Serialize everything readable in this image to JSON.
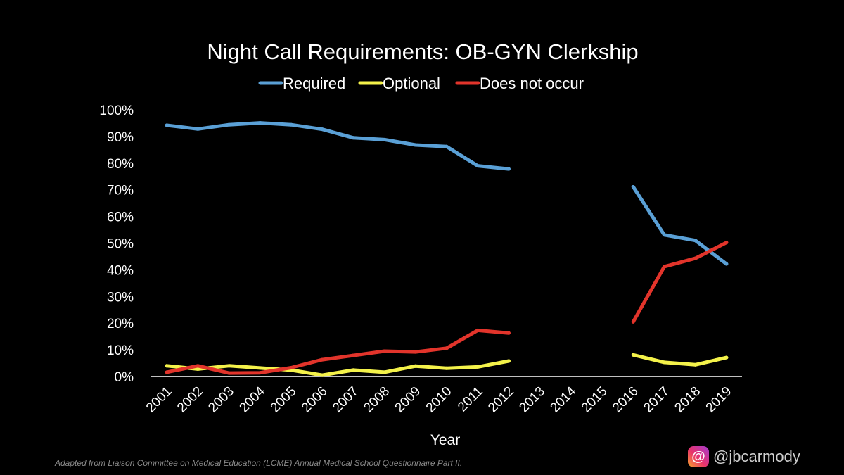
{
  "chart_data": {
    "type": "line",
    "title": "Night Call Requirements: OB-GYN Clerkship",
    "xlabel": "Year",
    "ylabel": "",
    "categories": [
      "2001",
      "2002",
      "2003",
      "2004",
      "2005",
      "2006",
      "2007",
      "2008",
      "2009",
      "2010",
      "2011",
      "2012",
      "2013",
      "2014",
      "2015",
      "2016",
      "2017",
      "2018",
      "2019"
    ],
    "ylim": [
      0,
      100
    ],
    "yticks": [
      "0%",
      "10%",
      "20%",
      "30%",
      "40%",
      "50%",
      "60%",
      "70%",
      "80%",
      "90%",
      "100%"
    ],
    "grid": false,
    "legend_position": "top",
    "series": [
      {
        "name": "Required",
        "color": "#5aa0d6",
        "values": [
          94.2,
          92.8,
          94.4,
          95.1,
          94.4,
          92.7,
          89.5,
          88.8,
          86.8,
          86.2,
          79.0,
          77.8,
          null,
          null,
          null,
          71.1,
          53.1,
          51.0,
          42.2
        ]
      },
      {
        "name": "Optional",
        "color": "#f4f24a",
        "values": [
          4.0,
          2.8,
          4.0,
          3.2,
          2.4,
          0.5,
          2.4,
          1.6,
          3.9,
          3.1,
          3.6,
          5.8,
          null,
          null,
          null,
          8.1,
          5.3,
          4.4,
          7.1
        ]
      },
      {
        "name": "Does not occur",
        "color": "#e2342b",
        "values": [
          1.6,
          4.0,
          1.3,
          1.4,
          3.3,
          6.3,
          7.9,
          9.5,
          9.2,
          10.6,
          17.3,
          16.3,
          null,
          null,
          null,
          20.5,
          41.2,
          44.3,
          50.2
        ]
      }
    ]
  },
  "footer": {
    "source": "Adapted from Liaison Committee on Medical Education (LCME) Annual Medical School Questionnaire Part II.",
    "handle": "@jbcarmody",
    "handle_icon": "threads-icon"
  }
}
